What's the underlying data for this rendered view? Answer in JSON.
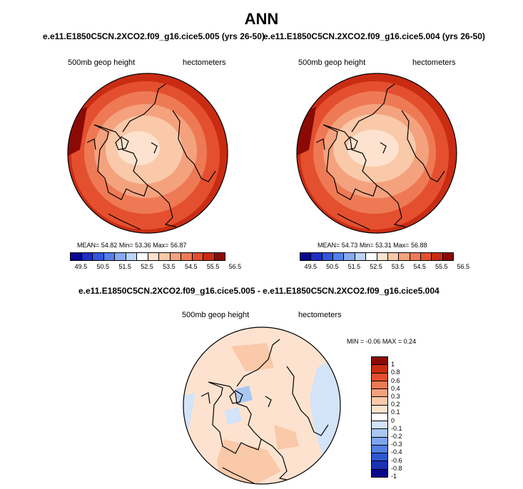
{
  "title": "ANN",
  "panels": [
    {
      "case_title": "e.e11.E1850C5CN.2XCO2.f09_g16.cice5.005 (yrs 26-50)",
      "variable": "500mb geop height",
      "units": "hectometers",
      "stats": {
        "mean_label": "MEAN=",
        "mean": "54.82",
        "min_label": "Min=",
        "min": "53.36",
        "max_label": "Max=",
        "max": "56.87"
      }
    },
    {
      "case_title": "e.e11.E1850C5CN.2XCO2.f09_g16.cice5.004 (yrs 26-50)",
      "variable": "500mb geop height",
      "units": "hectometers",
      "stats": {
        "mean_label": "MEAN=",
        "mean": "54.73",
        "min_label": "Min=",
        "min": "53.31",
        "max_label": "Max=",
        "max": "56.88"
      }
    }
  ],
  "colorbar_top": {
    "colors": [
      "#08088f",
      "#1f2fc4",
      "#3355dd",
      "#5580ea",
      "#87a9f0",
      "#bcd4f6",
      "#ffffff",
      "#fde3cf",
      "#f9c9a9",
      "#f4a27e",
      "#ee7a55",
      "#e4502f",
      "#c92c13",
      "#8b0a06"
    ],
    "labels": [
      "49.5",
      "50.5",
      "51.5",
      "52.5",
      "53.5",
      "54.5",
      "55.5",
      "56.5"
    ]
  },
  "diff": {
    "title": "e.e11.E1850C5CN.2XCO2.f09_g16.cice5.005 - e.e11.E1850C5CN.2XCO2.f09_g16.cice5.004",
    "variable": "500mb geop height",
    "units": "hectometers",
    "stats": {
      "min_label": "MIN =",
      "min": "-0.06",
      "max_label": "MAX =",
      "max": "0.24"
    }
  },
  "colorbar_diff": {
    "colors": [
      "#8b0a06",
      "#c92c13",
      "#e4502f",
      "#ee7a55",
      "#f4a27e",
      "#f9c9a9",
      "#fde3cf",
      "#ffffff",
      "#d3e3f8",
      "#a9c7f3",
      "#7ea5ec",
      "#5380e2",
      "#3057d2",
      "#1a33b3",
      "#08088f"
    ],
    "labels": [
      "1",
      "0.8",
      "0.6",
      "0.4",
      "0.3",
      "0.2",
      "0.1",
      "0",
      "-0.1",
      "-0.2",
      "-0.3",
      "-0.4",
      "-0.6",
      "-0.8",
      "-1"
    ]
  }
}
